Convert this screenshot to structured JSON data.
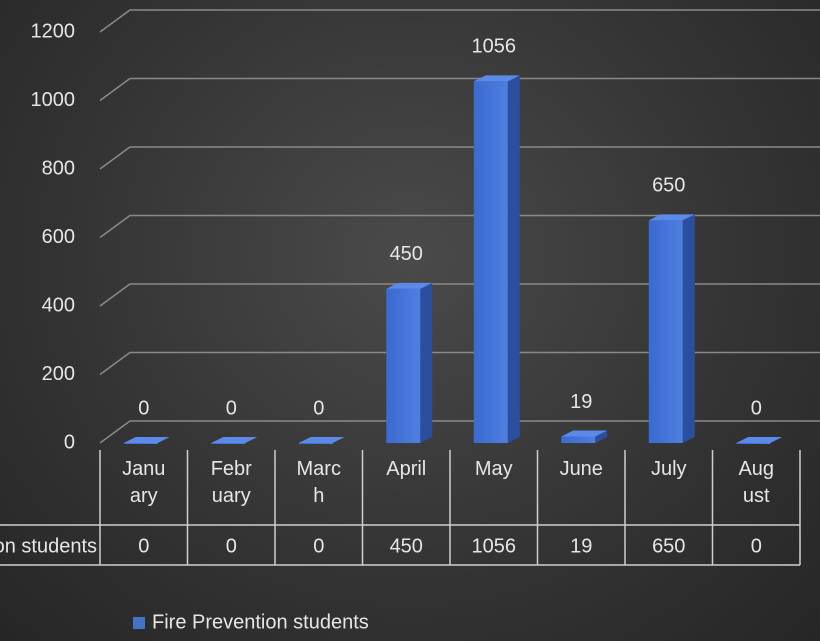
{
  "chart_data": {
    "type": "bar",
    "categories": [
      "January",
      "February",
      "March",
      "April",
      "May",
      "June",
      "July",
      "August"
    ],
    "series": [
      {
        "name": "Fire Prevention students",
        "color": "#4472c4",
        "values": [
          0,
          0,
          0,
          450,
          1056,
          19,
          650,
          0
        ]
      }
    ],
    "ylim": [
      0,
      1200
    ],
    "yticks": [
      0,
      200,
      400,
      600,
      800,
      1000,
      1200
    ],
    "grid": true,
    "legend": "bottom"
  }
}
